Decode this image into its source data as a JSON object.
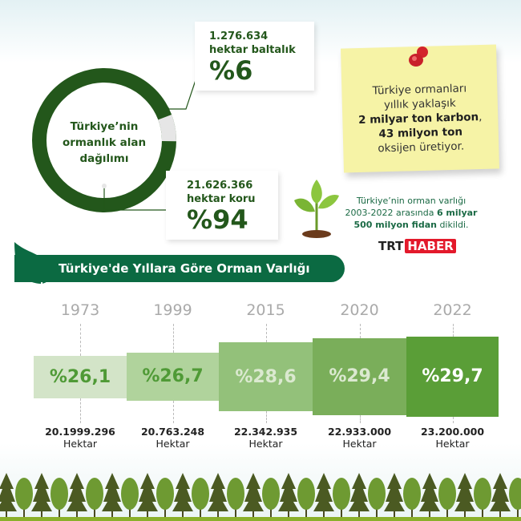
{
  "colors": {
    "dark_green": "#23571b",
    "ring_gray": "#e6e6e6",
    "banner": "#0b6a42",
    "note": "#f6f3a6",
    "trt_red": "#e3192b"
  },
  "chart_data": [
    {
      "type": "pie",
      "variant": "donut",
      "title": "Türkiye'nin ormanlık alan dağılımı",
      "slices": [
        {
          "label": "hektar koru",
          "hectares": "21.626.366",
          "percent": 94
        },
        {
          "label": "hektar baltalık",
          "hectares": "1.276.634",
          "percent": 6
        }
      ]
    },
    {
      "type": "bar",
      "title": "Türkiye'de Yıllara Göre Orman Varlığı",
      "categories": [
        "1973",
        "1999",
        "2015",
        "2020",
        "2022"
      ],
      "values": [
        26.1,
        26.7,
        28.6,
        29.4,
        29.7
      ],
      "labels": [
        "%26,1",
        "%26,7",
        "%28,6",
        "%29,4",
        "%29,7"
      ],
      "hectares": [
        "20.1999.296",
        "20.763.248",
        "22.342.935",
        "22.933.000",
        "23.200.000"
      ],
      "unit": "Hektar"
    }
  ],
  "donut": {
    "center_l1": "Türkiye’nin",
    "center_l2": "ormanlık alan",
    "center_l3": "dağılımı",
    "baltalik": {
      "num": "1.276.634",
      "label": "hektar baltalık",
      "pct": "%6"
    },
    "koru": {
      "num": "21.626.366",
      "label": "hektar koru",
      "pct": "%94"
    }
  },
  "note": {
    "l1": "Türkiye ormanları",
    "l2": "yıllık yaklaşık",
    "l3": "2  milyar ton karbon",
    "l3b": ",",
    "l4": "43 milyon ton",
    "l5": "oksijen üretiyor."
  },
  "plant": {
    "l1": "Türkiye’nin orman varlığı",
    "l2a": "2003-2022 arasında ",
    "l2b": "6 milyar",
    "l3a": "500 milyon fidan",
    "l3b": " dikildi."
  },
  "logo": {
    "trt": "TRT",
    "haber": "HABER"
  }
}
